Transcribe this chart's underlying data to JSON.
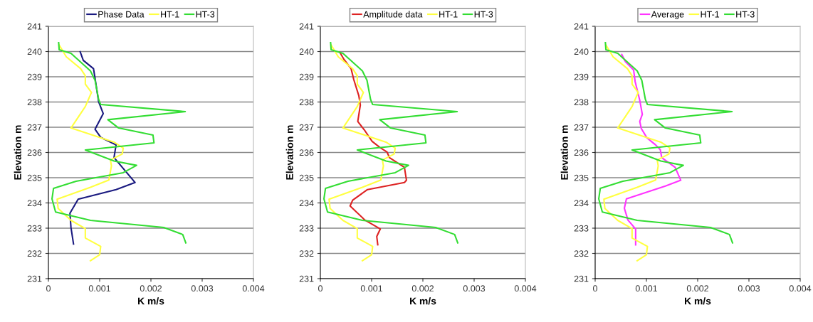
{
  "chart_data": [
    {
      "type": "line",
      "xlabel": "K m/s",
      "ylabel": "Elevation m",
      "xlim": [
        0,
        0.004
      ],
      "xticks": [
        0,
        0.001,
        0.002,
        0.003,
        0.004
      ],
      "ylim": [
        231,
        241
      ],
      "yticks": [
        231,
        232,
        233,
        234,
        235,
        236,
        237,
        238,
        239,
        240,
        241
      ],
      "grid": "y",
      "legend": "top",
      "marker": "none",
      "line_style": "solid",
      "series": [
        {
          "name": "Phase Data",
          "color": "#1a1a80",
          "x": [
            0.00062,
            0.00068,
            0.00088,
            0.00091,
            0.00098,
            0.00107,
            0.00091,
            0.00102,
            0.00132,
            0.00128,
            0.00169,
            0.00132,
            0.00058,
            0.00042,
            0.00044,
            0.00049
          ],
          "values": [
            239.99,
            239.65,
            239.32,
            238.94,
            238.01,
            237.54,
            236.92,
            236.6,
            236.3,
            235.8,
            234.81,
            234.53,
            234.15,
            233.59,
            233.03,
            232.37
          ]
        },
        {
          "name": "HT-1",
          "color": "#ffff40",
          "x": [
            0.00021,
            0.00035,
            0.00063,
            0.00072,
            0.00072,
            0.00084,
            0.00072,
            0.00044,
            0.00128,
            0.00146,
            0.00144,
            0.00121,
            0.00123,
            0.00118,
            0.00082,
            0.00017,
            0.00019,
            0.00044,
            0.00072,
            0.00072,
            0.00102,
            0.001,
            0.00082
          ],
          "values": [
            240.26,
            239.79,
            239.32,
            239.04,
            238.71,
            238.38,
            237.82,
            236.97,
            236.41,
            236.17,
            235.94,
            235.7,
            235.47,
            234.91,
            234.62,
            234.15,
            233.78,
            233.31,
            232.98,
            232.61,
            232.28,
            231.95,
            231.71
          ]
        },
        {
          "name": "HT-3",
          "color": "#33dd33",
          "x": [
            0.0002,
            0.00021,
            0.00044,
            0.00082,
            0.00091,
            0.00098,
            0.00102,
            0.00267,
            0.00116,
            0.00137,
            0.00204,
            0.00206,
            0.00072,
            0.00128,
            0.00172,
            0.00146,
            0.00054,
            0.0001,
            7e-05,
            0.00014,
            0.00082,
            0.00225,
            0.00262,
            0.00268
          ],
          "values": [
            240.35,
            240.07,
            239.93,
            239.23,
            238.86,
            238.1,
            237.9,
            237.62,
            237.3,
            236.97,
            236.69,
            236.38,
            236.1,
            235.66,
            235.49,
            235.2,
            234.86,
            234.58,
            234.16,
            233.64,
            233.31,
            233.03,
            232.75,
            232.42
          ]
        }
      ]
    },
    {
      "type": "line",
      "xlabel": "K m/s",
      "ylabel": "Elevation m",
      "xlim": [
        0,
        0.004
      ],
      "xticks": [
        0,
        0.001,
        0.002,
        0.003,
        0.004
      ],
      "ylim": [
        231,
        241
      ],
      "yticks": [
        231,
        232,
        233,
        234,
        235,
        236,
        237,
        238,
        239,
        240,
        241
      ],
      "grid": "y",
      "legend": "top",
      "marker": "none",
      "line_style": "solid",
      "series": [
        {
          "name": "Amplitude data",
          "color": "#dd2222",
          "x": [
            0.00038,
            0.00046,
            0.0006,
            0.00065,
            0.00075,
            0.00078,
            0.00073,
            0.00087,
            0.00101,
            0.00116,
            0.0013,
            0.00135,
            0.00164,
            0.00168,
            0.00164,
            0.00092,
            0.00063,
            0.00058,
            0.00087,
            0.00117,
            0.0011,
            0.00112
          ],
          "values": [
            239.97,
            239.69,
            239.32,
            238.9,
            238.25,
            237.88,
            237.23,
            236.86,
            236.44,
            236.2,
            236.02,
            235.79,
            235.41,
            234.9,
            234.81,
            234.53,
            234.11,
            233.88,
            233.32,
            232.97,
            232.67,
            232.34
          ]
        },
        {
          "name": "HT-1",
          "color": "#ffff40",
          "x": [
            0.00021,
            0.00035,
            0.00063,
            0.00072,
            0.00072,
            0.00084,
            0.00072,
            0.00044,
            0.00128,
            0.00146,
            0.00144,
            0.00121,
            0.00123,
            0.00118,
            0.00082,
            0.00017,
            0.00019,
            0.00044,
            0.00072,
            0.00072,
            0.00102,
            0.001,
            0.00082
          ],
          "values": [
            240.26,
            239.79,
            239.32,
            239.04,
            238.71,
            238.38,
            237.82,
            236.97,
            236.41,
            236.17,
            235.94,
            235.7,
            235.47,
            234.91,
            234.62,
            234.15,
            233.78,
            233.31,
            232.98,
            232.61,
            232.28,
            231.95,
            231.71
          ]
        },
        {
          "name": "HT-3",
          "color": "#33dd33",
          "x": [
            0.0002,
            0.00021,
            0.00044,
            0.00082,
            0.00091,
            0.00098,
            0.00102,
            0.00267,
            0.00116,
            0.00137,
            0.00204,
            0.00206,
            0.00072,
            0.00128,
            0.00172,
            0.00146,
            0.00054,
            0.0001,
            7e-05,
            0.00014,
            0.00082,
            0.00225,
            0.00262,
            0.00268
          ],
          "values": [
            240.35,
            240.07,
            239.93,
            239.23,
            238.86,
            238.1,
            237.9,
            237.62,
            237.3,
            236.97,
            236.69,
            236.38,
            236.1,
            235.66,
            235.49,
            235.2,
            234.86,
            234.58,
            234.16,
            233.64,
            233.31,
            233.03,
            232.75,
            232.42
          ]
        }
      ]
    },
    {
      "type": "line",
      "xlabel": "K m/s",
      "ylabel": "Elevation m",
      "xlim": [
        0,
        0.004
      ],
      "xticks": [
        0,
        0.001,
        0.002,
        0.003,
        0.004
      ],
      "ylim": [
        231,
        241
      ],
      "yticks": [
        231,
        232,
        233,
        234,
        235,
        236,
        237,
        238,
        239,
        240,
        241
      ],
      "grid": "y",
      "legend": "top",
      "marker": "none",
      "line_style": "solid",
      "series": [
        {
          "name": "Average",
          "color": "#ff33ff",
          "x": [
            0.00052,
            0.00059,
            0.00075,
            0.00078,
            0.00087,
            0.00092,
            0.00087,
            0.0009,
            0.00101,
            0.00118,
            0.00127,
            0.0013,
            0.00156,
            0.00167,
            0.00137,
            0.00061,
            0.00057,
            0.00064,
            0.00079,
            0.00079
          ],
          "values": [
            239.88,
            239.6,
            239.27,
            238.81,
            238.07,
            237.51,
            237.23,
            236.95,
            236.58,
            236.3,
            236.11,
            235.79,
            235.41,
            234.9,
            234.67,
            234.16,
            233.79,
            233.32,
            232.97,
            232.34
          ]
        },
        {
          "name": "HT-1",
          "color": "#ffff40",
          "x": [
            0.00021,
            0.00035,
            0.00063,
            0.00072,
            0.00072,
            0.00084,
            0.00072,
            0.00044,
            0.00128,
            0.00146,
            0.00144,
            0.00121,
            0.00123,
            0.00118,
            0.00082,
            0.00017,
            0.00019,
            0.00044,
            0.00072,
            0.00072,
            0.00102,
            0.001,
            0.00082
          ],
          "values": [
            240.26,
            239.79,
            239.32,
            239.04,
            238.71,
            238.38,
            237.82,
            236.97,
            236.41,
            236.17,
            235.94,
            235.7,
            235.47,
            234.91,
            234.62,
            234.15,
            233.78,
            233.31,
            232.98,
            232.61,
            232.28,
            231.95,
            231.71
          ]
        },
        {
          "name": "HT-3",
          "color": "#33dd33",
          "x": [
            0.0002,
            0.00021,
            0.00044,
            0.00082,
            0.00091,
            0.00098,
            0.00102,
            0.00267,
            0.00116,
            0.00137,
            0.00204,
            0.00206,
            0.00072,
            0.00128,
            0.00172,
            0.00146,
            0.00054,
            0.0001,
            7e-05,
            0.00014,
            0.00082,
            0.00225,
            0.00262,
            0.00268
          ],
          "values": [
            240.35,
            240.07,
            239.93,
            239.23,
            238.86,
            238.1,
            237.9,
            237.62,
            237.3,
            236.97,
            236.69,
            236.38,
            236.1,
            235.66,
            235.49,
            235.2,
            234.86,
            234.58,
            234.16,
            233.64,
            233.31,
            233.03,
            232.75,
            232.42
          ]
        }
      ]
    }
  ]
}
